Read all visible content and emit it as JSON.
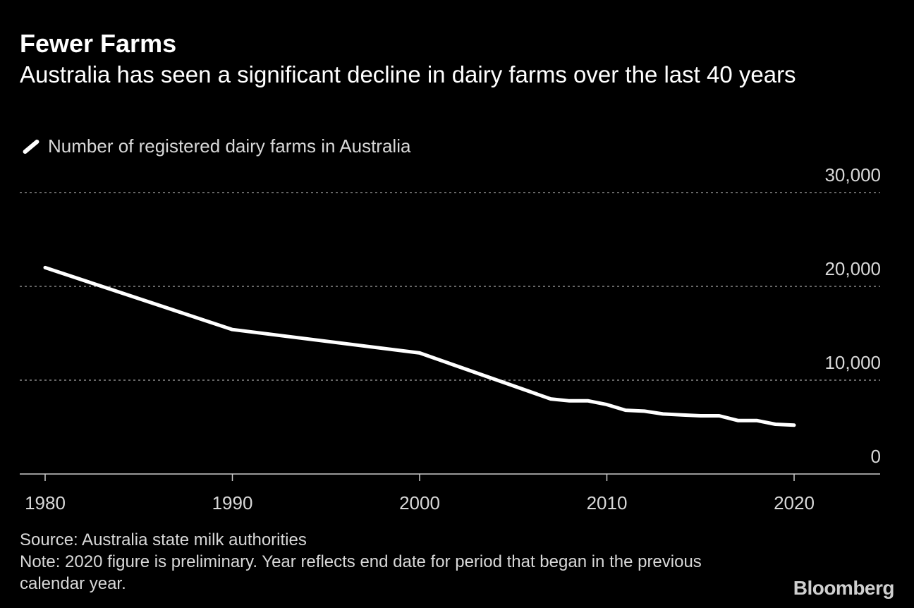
{
  "header": {
    "title": "Fewer Farms",
    "subtitle": "Australia has seen a significant decline in dairy farms over the last 40 years"
  },
  "legend": {
    "label": "Number of registered dairy farms in Australia"
  },
  "footer": {
    "source": "Source: Australia state milk authorities",
    "note": "Note: 2020 figure is preliminary. Year reflects end date for period that began in the previous calendar year.",
    "logo": "Bloomberg"
  },
  "colors": {
    "background": "#000000",
    "line": "#ffffff",
    "grid": "#888888",
    "text": "#d8d8d8"
  },
  "chart_data": {
    "type": "line",
    "title": "Fewer Farms",
    "subtitle": "Australia has seen a significant decline in dairy farms over the last 40 years",
    "xlabel": "",
    "ylabel": "",
    "xlim": [
      1979,
      2024
    ],
    "ylim": [
      0,
      30000
    ],
    "x_ticks": [
      1980,
      1990,
      2000,
      2010,
      2020
    ],
    "x_tick_labels": [
      "1980",
      "1990",
      "2000",
      "2010",
      "2020"
    ],
    "y_ticks": [
      0,
      10000,
      20000,
      30000
    ],
    "y_tick_labels": [
      "0",
      "10,000",
      "20,000",
      "30,000"
    ],
    "grid": "horizontal dotted",
    "legend_position": "top-left",
    "series": [
      {
        "name": "Number of registered dairy farms in Australia",
        "x": [
          1980,
          1990,
          2000,
          2007,
          2008,
          2009,
          2010,
          2011,
          2012,
          2013,
          2014,
          2015,
          2016,
          2017,
          2018,
          2019,
          2020
        ],
        "values": [
          22000,
          15400,
          12900,
          8000,
          7800,
          7800,
          7400,
          6800,
          6700,
          6400,
          6300,
          6200,
          6200,
          5700,
          5700,
          5300,
          5200
        ]
      }
    ]
  }
}
